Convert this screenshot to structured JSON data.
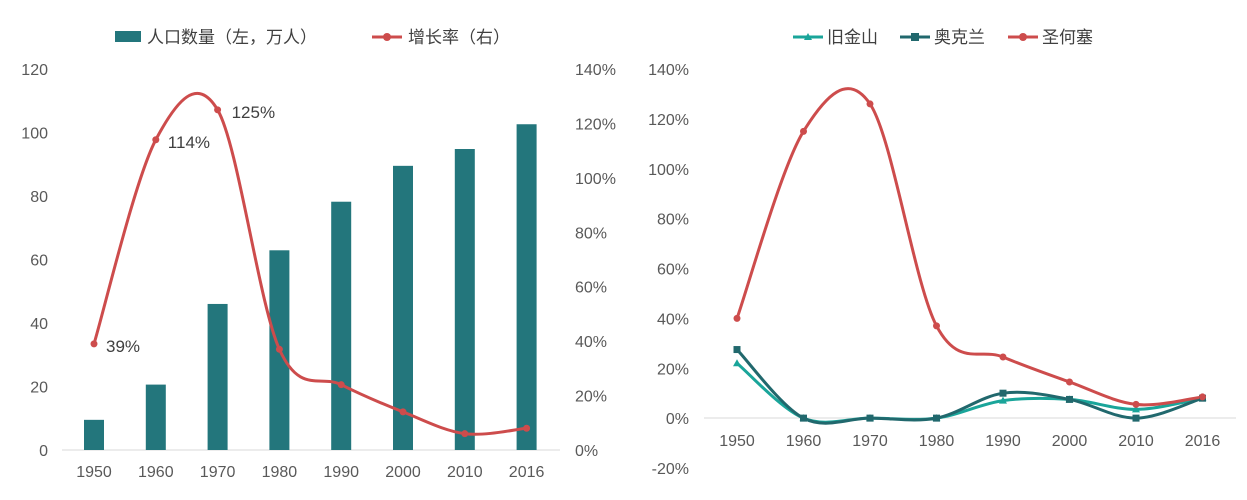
{
  "colors": {
    "teal": "#23767c",
    "red": "#cd4c4c",
    "green": "#1aa59a",
    "darkteal": "#21686d",
    "axis": "#d9d9d9",
    "text": "#595959"
  },
  "chart_data": [
    {
      "type": "bar+line",
      "categories": [
        "1950",
        "1960",
        "1970",
        "1980",
        "1990",
        "2000",
        "2010",
        "2016"
      ],
      "series": [
        {
          "name": "人口数量（左，万人）",
          "type": "bar",
          "axis": "left",
          "values": [
            9.5,
            20.6,
            46.0,
            62.9,
            78.2,
            89.5,
            94.8,
            102.6
          ]
        },
        {
          "name": "增长率（右）",
          "type": "line",
          "axis": "right",
          "values": [
            0.39,
            1.14,
            1.25,
            0.37,
            0.24,
            0.14,
            0.06,
            0.08
          ]
        }
      ],
      "data_labels": [
        "39%",
        "114%",
        "125%"
      ],
      "y_left": {
        "ylim": [
          0,
          120
        ],
        "ticks": [
          "0",
          "20",
          "40",
          "60",
          "80",
          "100",
          "120"
        ]
      },
      "y_right": {
        "ylim": [
          0,
          1.4
        ],
        "ticks": [
          "0%",
          "20%",
          "40%",
          "60%",
          "80%",
          "100%",
          "120%",
          "140%"
        ]
      },
      "legend": "top"
    },
    {
      "type": "line",
      "categories": [
        "1950",
        "1960",
        "1970",
        "1980",
        "1990",
        "2000",
        "2010",
        "2016"
      ],
      "series": [
        {
          "name": "旧金山",
          "marker": "triangle",
          "values": [
            0.22,
            0.0,
            0.0,
            0.0,
            0.07,
            0.075,
            0.035,
            0.08
          ]
        },
        {
          "name": "奥克兰",
          "marker": "square",
          "values": [
            0.275,
            0.0,
            0.0,
            0.0,
            0.1,
            0.075,
            0.0,
            0.08
          ]
        },
        {
          "name": "圣何塞",
          "marker": "circle",
          "values": [
            0.4,
            1.15,
            1.26,
            0.37,
            0.245,
            0.145,
            0.055,
            0.085
          ]
        }
      ],
      "y": {
        "ylim": [
          -0.2,
          1.4
        ],
        "ticks": [
          "-20%",
          "0%",
          "20%",
          "40%",
          "60%",
          "80%",
          "100%",
          "120%",
          "140%"
        ]
      },
      "legend": "top"
    }
  ]
}
